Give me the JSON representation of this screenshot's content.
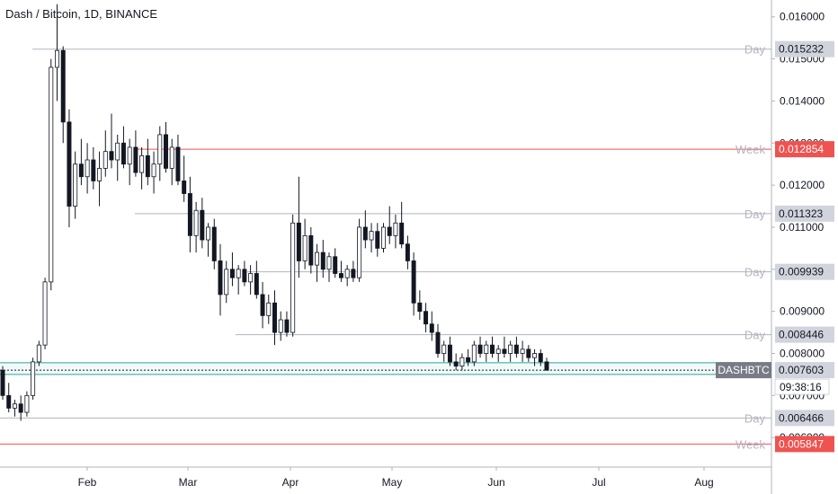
{
  "header": {
    "title": "Dash / Bitcoin, 1D, BINANCE"
  },
  "symbol": {
    "ticker": "DASHBTC",
    "countdown": "09:38:16"
  },
  "colors": {
    "up": "#ffffff",
    "down": "#131722",
    "wick": "#131722",
    "day_level": "#b2b5be",
    "week_level": "#ef5350",
    "current_band": "#26a69a",
    "tag_bg": "#d1d4dc",
    "axis_text": "#131722"
  },
  "chart_data": {
    "type": "candlestick",
    "title": "Dash / Bitcoin, 1D, BINANCE",
    "y_axis": {
      "ticks": [
        "0.016000",
        "0.015000",
        "0.014000",
        "0.013000",
        "0.012000",
        "0.011000",
        "0.010000",
        "0.009000",
        "0.008000",
        "0.007000",
        "0.006000"
      ],
      "ylim": [
        0.0053,
        0.0164
      ]
    },
    "x_axis": {
      "ticks": [
        "Feb",
        "Mar",
        "Apr",
        "May",
        "Jun",
        "Jul",
        "Aug"
      ]
    },
    "levels": [
      {
        "label": "Day",
        "value": "0.015232",
        "kind": "day"
      },
      {
        "label": "Week",
        "value": "0.012854",
        "kind": "week"
      },
      {
        "label": "Day",
        "value": "0.011323",
        "kind": "day"
      },
      {
        "label": "Day",
        "value": "0.009939",
        "kind": "day"
      },
      {
        "label": "Day",
        "value": "0.008446",
        "kind": "day"
      },
      {
        "label": "Day",
        "value": "0.006466",
        "kind": "day"
      },
      {
        "label": "Week",
        "value": "0.005847",
        "kind": "week"
      }
    ],
    "last_price": "0.007603",
    "band": [
      0.00778,
      0.0075
    ],
    "candles": [
      [
        0.0076,
        0.0077,
        0.0069,
        0.007
      ],
      [
        0.007,
        0.0073,
        0.0066,
        0.0067
      ],
      [
        0.0067,
        0.0069,
        0.0065,
        0.0068
      ],
      [
        0.0068,
        0.007,
        0.0064,
        0.0066
      ],
      [
        0.0066,
        0.0071,
        0.0065,
        0.007
      ],
      [
        0.007,
        0.0079,
        0.0069,
        0.0078
      ],
      [
        0.0078,
        0.0083,
        0.0077,
        0.0082
      ],
      [
        0.0082,
        0.0098,
        0.0081,
        0.0097
      ],
      [
        0.0097,
        0.015,
        0.0095,
        0.0148
      ],
      [
        0.0148,
        0.0163,
        0.014,
        0.0152
      ],
      [
        0.0152,
        0.0153,
        0.013,
        0.0135
      ],
      [
        0.0135,
        0.0138,
        0.011,
        0.0115
      ],
      [
        0.0115,
        0.0128,
        0.0112,
        0.0125
      ],
      [
        0.0125,
        0.0131,
        0.012,
        0.0122
      ],
      [
        0.0122,
        0.013,
        0.0118,
        0.0126
      ],
      [
        0.0126,
        0.0129,
        0.0119,
        0.0121
      ],
      [
        0.0121,
        0.0128,
        0.0115,
        0.0124
      ],
      [
        0.0124,
        0.0133,
        0.0122,
        0.0128
      ],
      [
        0.0128,
        0.0137,
        0.0124,
        0.0126
      ],
      [
        0.0126,
        0.0132,
        0.0121,
        0.013
      ],
      [
        0.013,
        0.0134,
        0.0124,
        0.0125
      ],
      [
        0.0125,
        0.0131,
        0.012,
        0.0129
      ],
      [
        0.0129,
        0.0133,
        0.0122,
        0.0123
      ],
      [
        0.0123,
        0.0129,
        0.0119,
        0.0127
      ],
      [
        0.0127,
        0.0131,
        0.012,
        0.0122
      ],
      [
        0.0122,
        0.0128,
        0.0118,
        0.0125
      ],
      [
        0.0125,
        0.0134,
        0.0121,
        0.0132
      ],
      [
        0.0132,
        0.0135,
        0.0123,
        0.0124
      ],
      [
        0.0124,
        0.0131,
        0.012,
        0.0129
      ],
      [
        0.0129,
        0.0132,
        0.012,
        0.0121
      ],
      [
        0.0121,
        0.0127,
        0.0116,
        0.0118
      ],
      [
        0.0118,
        0.0122,
        0.0104,
        0.0108
      ],
      [
        0.0108,
        0.0116,
        0.0104,
        0.0114
      ],
      [
        0.0114,
        0.0117,
        0.0105,
        0.0107
      ],
      [
        0.0107,
        0.0111,
        0.0103,
        0.011
      ],
      [
        0.011,
        0.0112,
        0.01,
        0.0102
      ],
      [
        0.0102,
        0.0106,
        0.0089,
        0.0094
      ],
      [
        0.0094,
        0.0102,
        0.0092,
        0.01
      ],
      [
        0.01,
        0.0104,
        0.0096,
        0.0098
      ],
      [
        0.0098,
        0.0101,
        0.0094,
        0.01
      ],
      [
        0.01,
        0.0102,
        0.0096,
        0.0097
      ],
      [
        0.0097,
        0.0101,
        0.0094,
        0.0099
      ],
      [
        0.0099,
        0.0102,
        0.0093,
        0.0094
      ],
      [
        0.0094,
        0.0097,
        0.0086,
        0.0089
      ],
      [
        0.0089,
        0.0094,
        0.0087,
        0.0092
      ],
      [
        0.0092,
        0.0095,
        0.0082,
        0.0085
      ],
      [
        0.0085,
        0.009,
        0.0083,
        0.0088
      ],
      [
        0.0088,
        0.009,
        0.0084,
        0.0085
      ],
      [
        0.0085,
        0.0113,
        0.0084,
        0.0111
      ],
      [
        0.0111,
        0.0122,
        0.0098,
        0.0102
      ],
      [
        0.0102,
        0.0112,
        0.01,
        0.0108
      ],
      [
        0.0108,
        0.011,
        0.0099,
        0.0101
      ],
      [
        0.0101,
        0.0106,
        0.0097,
        0.0104
      ],
      [
        0.0104,
        0.0107,
        0.0098,
        0.01
      ],
      [
        0.01,
        0.0104,
        0.0097,
        0.0103
      ],
      [
        0.0103,
        0.0105,
        0.0098,
        0.0099
      ],
      [
        0.0099,
        0.0102,
        0.0097,
        0.0098
      ],
      [
        0.0098,
        0.0101,
        0.0096,
        0.01
      ],
      [
        0.01,
        0.0102,
        0.0097,
        0.0098
      ],
      [
        0.0098,
        0.0112,
        0.0097,
        0.011
      ],
      [
        0.011,
        0.0114,
        0.0105,
        0.0107
      ],
      [
        0.0107,
        0.0111,
        0.0104,
        0.0109
      ],
      [
        0.0109,
        0.0111,
        0.0103,
        0.0105
      ],
      [
        0.0105,
        0.0111,
        0.0104,
        0.011
      ],
      [
        0.011,
        0.0115,
        0.0106,
        0.0108
      ],
      [
        0.0108,
        0.0113,
        0.0105,
        0.0111
      ],
      [
        0.0111,
        0.0116,
        0.0105,
        0.0106
      ],
      [
        0.0106,
        0.0108,
        0.01,
        0.0102
      ],
      [
        0.0102,
        0.0104,
        0.0089,
        0.0092
      ],
      [
        0.0092,
        0.0095,
        0.0088,
        0.009
      ],
      [
        0.009,
        0.0092,
        0.0085,
        0.0087
      ],
      [
        0.0087,
        0.009,
        0.0083,
        0.0085
      ],
      [
        0.0085,
        0.0087,
        0.0079,
        0.008
      ],
      [
        0.008,
        0.0083,
        0.0078,
        0.0082
      ],
      [
        0.0082,
        0.0084,
        0.0077,
        0.0078
      ],
      [
        0.0078,
        0.008,
        0.0076,
        0.0077
      ],
      [
        0.0077,
        0.008,
        0.0076,
        0.0079
      ],
      [
        0.0079,
        0.0081,
        0.0077,
        0.0078
      ],
      [
        0.0078,
        0.0083,
        0.0077,
        0.0082
      ],
      [
        0.0082,
        0.0084,
        0.0079,
        0.008
      ],
      [
        0.008,
        0.0083,
        0.0078,
        0.0082
      ],
      [
        0.0082,
        0.0084,
        0.0079,
        0.008
      ],
      [
        0.008,
        0.0082,
        0.0078,
        0.0081
      ],
      [
        0.0081,
        0.0084,
        0.0079,
        0.008
      ],
      [
        0.008,
        0.0083,
        0.0078,
        0.0082
      ],
      [
        0.0082,
        0.0084,
        0.0079,
        0.008
      ],
      [
        0.008,
        0.0083,
        0.0078,
        0.0081
      ],
      [
        0.0081,
        0.0082,
        0.0078,
        0.0079
      ],
      [
        0.0079,
        0.0081,
        0.0077,
        0.008
      ],
      [
        0.008,
        0.0081,
        0.0077,
        0.0078
      ],
      [
        0.0078,
        0.0079,
        0.0076,
        0.0076
      ]
    ]
  }
}
